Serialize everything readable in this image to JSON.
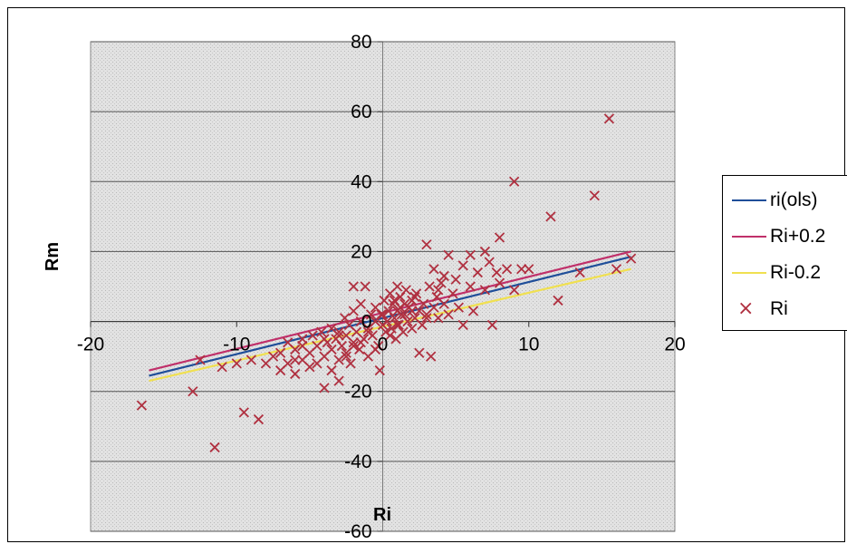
{
  "chart_data": {
    "type": "scatter",
    "title": "",
    "xlabel": "Ri",
    "ylabel": "Rm",
    "xlim": [
      -20,
      20
    ],
    "ylim": [
      -60,
      80
    ],
    "x_ticks": [
      -20,
      -10,
      0,
      10,
      20
    ],
    "x_tick_labels": [
      "-20",
      "-10",
      "0",
      "10",
      "20"
    ],
    "y_ticks": [
      -60,
      -40,
      -20,
      0,
      20,
      40,
      60,
      80
    ],
    "y_tick_labels": [
      "-60",
      "-40",
      "-20",
      "0",
      "20",
      "40",
      "60",
      "80"
    ],
    "grid": "horizontal",
    "legend_position": "right",
    "lines": [
      {
        "name": "ri(ols)",
        "color": "#1f4e99",
        "x": [
          -16,
          17
        ],
        "y": [
          -15.5,
          18.5
        ]
      },
      {
        "name": "Ri+0.2",
        "color": "#c0306a",
        "x": [
          -16,
          17
        ],
        "y": [
          -14,
          20
        ]
      },
      {
        "name": "Ri-0.2",
        "color": "#f0e050",
        "x": [
          -16,
          17
        ],
        "y": [
          -17,
          15
        ]
      }
    ],
    "scatter": {
      "name": "Ri",
      "color": "#b03040",
      "marker": "×",
      "points": [
        [
          -16.5,
          -24
        ],
        [
          -13,
          -20
        ],
        [
          -12.5,
          -11
        ],
        [
          -11.5,
          -36
        ],
        [
          -11,
          -13
        ],
        [
          -10,
          -12
        ],
        [
          -9.5,
          -26
        ],
        [
          -9,
          -11
        ],
        [
          -8.5,
          -28
        ],
        [
          -8,
          -12
        ],
        [
          -7.5,
          -10
        ],
        [
          -7,
          -14
        ],
        [
          -7,
          -9
        ],
        [
          -6.5,
          -12
        ],
        [
          -6.5,
          -6
        ],
        [
          -6,
          -15
        ],
        [
          -6,
          -8
        ],
        [
          -5.5,
          -11
        ],
        [
          -5.5,
          -5
        ],
        [
          -5,
          -13
        ],
        [
          -5,
          -9
        ],
        [
          -4.8,
          -4
        ],
        [
          -4.5,
          -12
        ],
        [
          -4.5,
          -7
        ],
        [
          -4.2,
          -3
        ],
        [
          -4,
          -19
        ],
        [
          -4,
          -10
        ],
        [
          -3.8,
          -6
        ],
        [
          -3.5,
          -14
        ],
        [
          -3.5,
          -8
        ],
        [
          -3.5,
          -2
        ],
        [
          -3.2,
          -5
        ],
        [
          -3,
          -11
        ],
        [
          -3,
          -17
        ],
        [
          -3,
          -3
        ],
        [
          -2.8,
          -7
        ],
        [
          -2.6,
          1
        ],
        [
          -2.5,
          -9
        ],
        [
          -2.5,
          -4
        ],
        [
          -2.3,
          -1
        ],
        [
          -2.2,
          -12
        ],
        [
          -2,
          -6
        ],
        [
          -2,
          3
        ],
        [
          -2,
          10
        ],
        [
          -1.8,
          -3
        ],
        [
          -1.6,
          -8
        ],
        [
          -1.5,
          0
        ],
        [
          -1.5,
          5
        ],
        [
          -1.3,
          -5
        ],
        [
          -1.2,
          10
        ],
        [
          -1,
          -2
        ],
        [
          -1,
          -10
        ],
        [
          -0.8,
          2
        ],
        [
          -0.7,
          -4
        ],
        [
          -0.5,
          0
        ],
        [
          -0.5,
          4
        ],
        [
          -0.3,
          -7
        ],
        [
          -0.2,
          -14
        ],
        [
          -0.1,
          2
        ],
        [
          0,
          -1
        ],
        [
          0.1,
          6
        ],
        [
          0.2,
          -3
        ],
        [
          0.3,
          0
        ],
        [
          0.4,
          3
        ],
        [
          0.5,
          8
        ],
        [
          0.6,
          -2
        ],
        [
          0.7,
          5
        ],
        [
          0.8,
          1
        ],
        [
          0.9,
          -5
        ],
        [
          1,
          3
        ],
        [
          1,
          10
        ],
        [
          1.1,
          -1
        ],
        [
          1.2,
          7
        ],
        [
          1.3,
          2
        ],
        [
          1.4,
          -3
        ],
        [
          1.5,
          5
        ],
        [
          1.6,
          9
        ],
        [
          1.7,
          0
        ],
        [
          1.8,
          4
        ],
        [
          2,
          -2
        ],
        [
          2,
          6
        ],
        [
          2.2,
          1
        ],
        [
          2.3,
          8
        ],
        [
          2.5,
          3
        ],
        [
          2.5,
          -9
        ],
        [
          2.7,
          -1
        ],
        [
          2.8,
          5
        ],
        [
          3,
          22
        ],
        [
          3,
          2
        ],
        [
          3.2,
          10
        ],
        [
          3.3,
          -10
        ],
        [
          3.5,
          4
        ],
        [
          3.5,
          15
        ],
        [
          3.7,
          7
        ],
        [
          3.8,
          1
        ],
        [
          4,
          11
        ],
        [
          4.2,
          5
        ],
        [
          4.5,
          19
        ],
        [
          4.5,
          2
        ],
        [
          4.8,
          8
        ],
        [
          5,
          12
        ],
        [
          5.2,
          4
        ],
        [
          5.5,
          16
        ],
        [
          5.5,
          -1
        ],
        [
          6,
          10
        ],
        [
          6,
          19
        ],
        [
          6.2,
          3
        ],
        [
          6.5,
          14
        ],
        [
          7,
          20
        ],
        [
          7,
          9
        ],
        [
          7.3,
          17
        ],
        [
          7.5,
          -1
        ],
        [
          7.8,
          14
        ],
        [
          8,
          24
        ],
        [
          8,
          11
        ],
        [
          8.5,
          15
        ],
        [
          9,
          40
        ],
        [
          9,
          9
        ],
        [
          9.5,
          15
        ],
        [
          10,
          15
        ],
        [
          11.5,
          30
        ],
        [
          12,
          6
        ],
        [
          13.5,
          14
        ],
        [
          14.5,
          36
        ],
        [
          15.5,
          58
        ],
        [
          16,
          15
        ],
        [
          17,
          18
        ],
        [
          -3,
          -4
        ],
        [
          -2,
          -7
        ],
        [
          -1,
          -3
        ],
        [
          0,
          2
        ],
        [
          1,
          -1
        ],
        [
          2,
          3
        ],
        [
          3,
          1
        ],
        [
          -1.5,
          -6
        ],
        [
          0.5,
          -4
        ],
        [
          1.5,
          2
        ],
        [
          -4,
          -5
        ],
        [
          -2.5,
          -10
        ],
        [
          0.8,
          6
        ],
        [
          2.2,
          7
        ],
        [
          3.8,
          9
        ],
        [
          4.2,
          13
        ],
        [
          -0.5,
          -8
        ],
        [
          1.2,
          4
        ],
        [
          -5.5,
          -7
        ],
        [
          -6,
          -11
        ]
      ]
    }
  }
}
